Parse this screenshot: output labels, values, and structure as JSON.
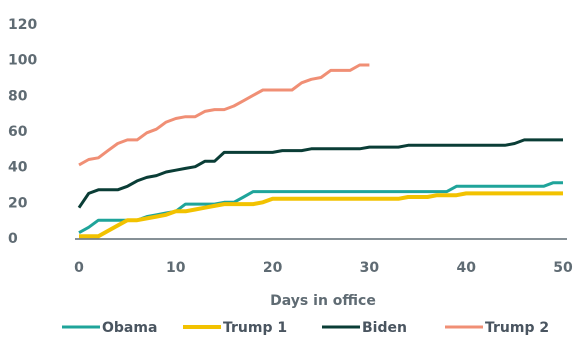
{
  "chart_data": {
    "type": "line",
    "xlabel": "Days in office",
    "ylabel": "",
    "xlim": [
      0,
      50
    ],
    "ylim": [
      0,
      120
    ],
    "xticks": [
      0,
      10,
      20,
      30,
      40,
      50
    ],
    "yticks": [
      0,
      20,
      40,
      60,
      80,
      100,
      120
    ],
    "legend_position": "bottom",
    "grid": false,
    "series": [
      {
        "name": "Obama",
        "color": "#1fa49a",
        "points": [
          [
            0,
            3
          ],
          [
            1,
            6
          ],
          [
            2,
            10
          ],
          [
            3,
            10
          ],
          [
            4,
            10
          ],
          [
            5,
            10
          ],
          [
            6,
            10
          ],
          [
            7,
            12
          ],
          [
            8,
            13
          ],
          [
            9,
            14
          ],
          [
            10,
            15
          ],
          [
            11,
            19
          ],
          [
            12,
            19
          ],
          [
            13,
            19
          ],
          [
            14,
            19
          ],
          [
            15,
            20
          ],
          [
            16,
            20
          ],
          [
            17,
            23
          ],
          [
            18,
            26
          ],
          [
            19,
            26
          ],
          [
            20,
            26
          ],
          [
            25,
            26
          ],
          [
            30,
            26
          ],
          [
            35,
            26
          ],
          [
            38,
            26
          ],
          [
            39,
            29
          ],
          [
            40,
            29
          ],
          [
            45,
            29
          ],
          [
            48,
            29
          ],
          [
            49,
            31
          ],
          [
            50,
            31
          ]
        ]
      },
      {
        "name": "Trump 1",
        "color": "#f2c200",
        "points": [
          [
            0,
            1
          ],
          [
            1,
            1
          ],
          [
            2,
            1
          ],
          [
            3,
            4
          ],
          [
            4,
            7
          ],
          [
            5,
            10
          ],
          [
            6,
            10
          ],
          [
            7,
            11
          ],
          [
            8,
            12
          ],
          [
            9,
            13
          ],
          [
            10,
            15
          ],
          [
            11,
            15
          ],
          [
            12,
            16
          ],
          [
            13,
            17
          ],
          [
            14,
            18
          ],
          [
            15,
            19
          ],
          [
            16,
            19
          ],
          [
            17,
            19
          ],
          [
            18,
            19
          ],
          [
            19,
            20
          ],
          [
            20,
            22
          ],
          [
            25,
            22
          ],
          [
            30,
            22
          ],
          [
            33,
            22
          ],
          [
            34,
            23
          ],
          [
            36,
            23
          ],
          [
            37,
            24
          ],
          [
            39,
            24
          ],
          [
            40,
            25
          ],
          [
            45,
            25
          ],
          [
            50,
            25
          ]
        ]
      },
      {
        "name": "Biden",
        "color": "#0a3d36",
        "points": [
          [
            0,
            17
          ],
          [
            1,
            25
          ],
          [
            2,
            27
          ],
          [
            3,
            27
          ],
          [
            4,
            27
          ],
          [
            5,
            29
          ],
          [
            6,
            32
          ],
          [
            7,
            34
          ],
          [
            8,
            35
          ],
          [
            9,
            37
          ],
          [
            10,
            38
          ],
          [
            11,
            39
          ],
          [
            12,
            40
          ],
          [
            13,
            43
          ],
          [
            14,
            43
          ],
          [
            15,
            48
          ],
          [
            16,
            48
          ],
          [
            17,
            48
          ],
          [
            18,
            48
          ],
          [
            19,
            48
          ],
          [
            20,
            48
          ],
          [
            21,
            49
          ],
          [
            22,
            49
          ],
          [
            23,
            49
          ],
          [
            24,
            50
          ],
          [
            25,
            50
          ],
          [
            26,
            50
          ],
          [
            27,
            50
          ],
          [
            28,
            50
          ],
          [
            29,
            50
          ],
          [
            30,
            51
          ],
          [
            31,
            51
          ],
          [
            32,
            51
          ],
          [
            33,
            51
          ],
          [
            34,
            52
          ],
          [
            35,
            52
          ],
          [
            36,
            52
          ],
          [
            40,
            52
          ],
          [
            44,
            52
          ],
          [
            45,
            53
          ],
          [
            46,
            55
          ],
          [
            47,
            55
          ],
          [
            48,
            55
          ],
          [
            49,
            55
          ],
          [
            50,
            55
          ]
        ]
      },
      {
        "name": "Trump 2",
        "color": "#f08f75",
        "points": [
          [
            0,
            41
          ],
          [
            1,
            44
          ],
          [
            2,
            45
          ],
          [
            3,
            49
          ],
          [
            4,
            53
          ],
          [
            5,
            55
          ],
          [
            6,
            55
          ],
          [
            7,
            59
          ],
          [
            8,
            61
          ],
          [
            9,
            65
          ],
          [
            10,
            67
          ],
          [
            11,
            68
          ],
          [
            12,
            68
          ],
          [
            13,
            71
          ],
          [
            14,
            72
          ],
          [
            15,
            72
          ],
          [
            16,
            74
          ],
          [
            17,
            77
          ],
          [
            18,
            80
          ],
          [
            19,
            83
          ],
          [
            20,
            83
          ],
          [
            21,
            83
          ],
          [
            22,
            83
          ],
          [
            23,
            87
          ],
          [
            24,
            89
          ],
          [
            25,
            90
          ],
          [
            26,
            94
          ],
          [
            27,
            94
          ],
          [
            28,
            94
          ],
          [
            29,
            97
          ],
          [
            30,
            97
          ]
        ]
      }
    ]
  }
}
